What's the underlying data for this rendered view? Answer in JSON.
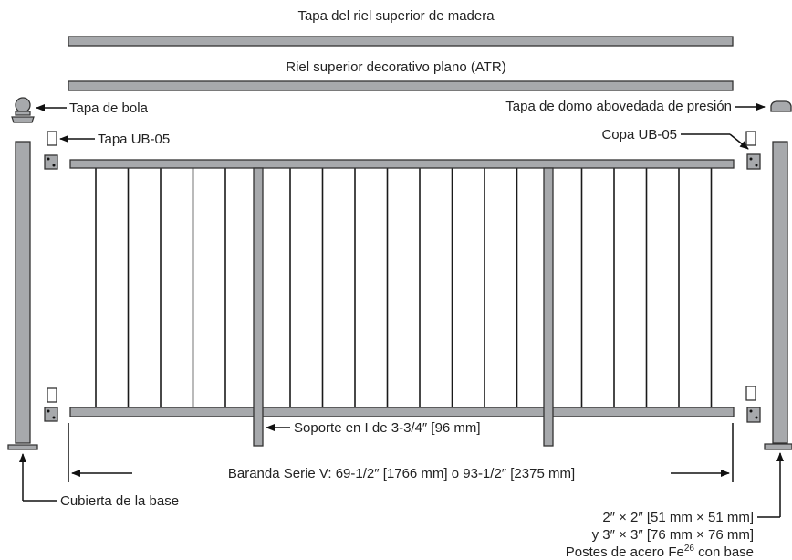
{
  "labels": {
    "wood_top_rail_cap": "Tapa del riel superior de madera",
    "decorative_flat_top_rail": "Riel superior decorativo plano (ATR)",
    "ball_cap": "Tapa de bola",
    "ub05_cap": "Tapa UB-05",
    "pressure_dome_cap": "Tapa de domo abovedada de presión",
    "ub05_cup": "Copa UB-05",
    "i_support": "Soporte en I de 3-3/4″ [96 mm]",
    "railing_series": "Baranda Serie V: 69-1/2″ [1766 mm] o 93-1/2″ [2375 mm]",
    "base_cover": "Cubierta de la base",
    "posts_line1": "2″ × 2″ [51 mm × 51 mm]",
    "posts_line2": "y 3″ × 3″ [76 mm × 76 mm]",
    "posts_line3_pre": "Postes de acero Fe",
    "posts_line3_sup": "26",
    "posts_line3_post": " con base"
  },
  "colors": {
    "rail_fill": "#a7a9ac",
    "outline": "#333333",
    "baluster": "#1a1a1a"
  }
}
